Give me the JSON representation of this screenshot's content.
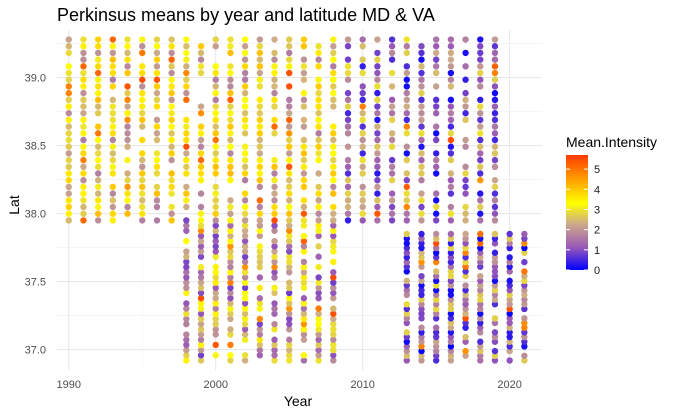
{
  "chart_data": {
    "type": "scatter",
    "title": "Perkinsus means by year and latitude MD & VA",
    "xlabel": "Year",
    "ylabel": "Lat",
    "xlim": [
      1989.2,
      2022.2
    ],
    "ylim": [
      36.85,
      39.35
    ],
    "x_ticks": [
      1990,
      2000,
      2010,
      2020
    ],
    "y_ticks": [
      37.0,
      37.5,
      38.0,
      38.5,
      39.0
    ],
    "grid": true,
    "legend": {
      "title": "Mean.Intensity",
      "position": "right",
      "range": [
        0,
        5.7
      ],
      "ticks": [
        0,
        1,
        2,
        3,
        4,
        5
      ],
      "colors": [
        "#0000ff",
        "#9b59b6",
        "#ccaa8a",
        "#ffff00",
        "#ff3b00"
      ]
    },
    "segments": [
      {
        "years": [
          1990,
          2008
        ],
        "lat_range": [
          37.95,
          39.28
        ],
        "base_intensity": 2.7
      },
      {
        "years": [
          1998,
          2008
        ],
        "lat_range": [
          36.92,
          37.95
        ],
        "base_intensity": 2.0
      },
      {
        "years": [
          2009,
          2019
        ],
        "lat_range": [
          37.95,
          39.28
        ],
        "base_intensity": 1.4
      },
      {
        "years": [
          2013,
          2021
        ],
        "lat_range": [
          36.92,
          37.85
        ],
        "base_intensity": 1.3
      }
    ]
  }
}
